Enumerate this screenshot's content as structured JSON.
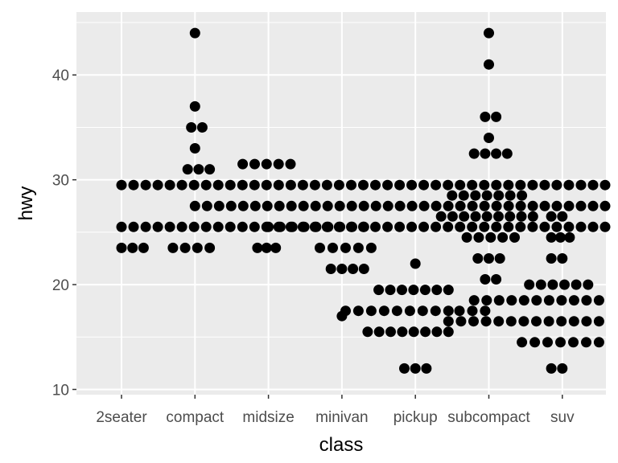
{
  "chart_data": {
    "type": "scatter",
    "style": "dotplot",
    "title": "",
    "xlabel": "class",
    "ylabel": "hwy",
    "categories": [
      "2seater",
      "compact",
      "midsize",
      "minivan",
      "pickup",
      "subcompact",
      "suv"
    ],
    "ylim": [
      9.5,
      46
    ],
    "y_ticks": [
      10,
      20,
      30,
      40
    ],
    "grid": true,
    "legend": "none",
    "colors": {
      "panel": "#ebebeb",
      "grid": "#ffffff",
      "point": "#000000"
    },
    "stacks": [
      {
        "y": 29.5,
        "from": 0,
        "to": 10
      },
      {
        "y": 27.5,
        "from": 1,
        "to": 10
      },
      {
        "y": 25.5,
        "from": 0,
        "to": 12
      },
      {
        "y": 23.5,
        "from": 0,
        "to": 0.3
      },
      {
        "y": 23.5,
        "from": 0.7,
        "to": 1.2
      },
      {
        "y": 31,
        "from": 0.9,
        "to": 1.2
      },
      {
        "y": 33,
        "from": 1,
        "to": 1
      },
      {
        "y": 35,
        "from": 0.95,
        "to": 1.1
      },
      {
        "y": 37,
        "from": 1,
        "to": 1
      },
      {
        "y": 44,
        "from": 1,
        "to": 1
      },
      {
        "y": 31.5,
        "from": 1.65,
        "to": 2.3
      },
      {
        "y": 23.5,
        "from": 1.85,
        "to": 2.1
      },
      {
        "y": 25.5,
        "from": 2,
        "to": 3.3
      },
      {
        "y": 23.5,
        "from": 2.7,
        "to": 3.4
      },
      {
        "y": 21.5,
        "from": 2.85,
        "to": 3.3
      },
      {
        "y": 17.5,
        "from": 3.05,
        "to": 4.45
      },
      {
        "y": 17,
        "from": 3,
        "to": 3
      },
      {
        "y": 15.5,
        "from": 3.35,
        "to": 4.45
      },
      {
        "y": 19.5,
        "from": 3.5,
        "to": 4.45
      },
      {
        "y": 22,
        "from": 4,
        "to": 4
      },
      {
        "y": 12,
        "from": 3.85,
        "to": 4.15
      },
      {
        "y": 16.5,
        "from": 4.45,
        "to": 6.5
      },
      {
        "y": 17.5,
        "from": 4.6,
        "to": 4.95
      },
      {
        "y": 18.5,
        "from": 4.8,
        "to": 6.5
      },
      {
        "y": 26.5,
        "from": 4.35,
        "to": 5.6
      },
      {
        "y": 28.5,
        "from": 4.5,
        "to": 5.45
      },
      {
        "y": 24.5,
        "from": 4.7,
        "to": 5.35
      },
      {
        "y": 22.5,
        "from": 4.85,
        "to": 5.15
      },
      {
        "y": 20.5,
        "from": 4.95,
        "to": 5.1
      },
      {
        "y": 32.5,
        "from": 4.8,
        "to": 5.25
      },
      {
        "y": 34,
        "from": 5,
        "to": 5
      },
      {
        "y": 36,
        "from": 4.95,
        "to": 5.1
      },
      {
        "y": 41,
        "from": 5,
        "to": 5
      },
      {
        "y": 44,
        "from": 5,
        "to": 5
      },
      {
        "y": 20,
        "from": 5.55,
        "to": 6.35
      },
      {
        "y": 14.5,
        "from": 5.45,
        "to": 6.5
      },
      {
        "y": 24.5,
        "from": 5.85,
        "to": 6.1
      },
      {
        "y": 22.5,
        "from": 5.85,
        "to": 6
      },
      {
        "y": 26.5,
        "from": 5.85,
        "to": 6
      },
      {
        "y": 12,
        "from": 5.85,
        "to": 6
      }
    ]
  }
}
